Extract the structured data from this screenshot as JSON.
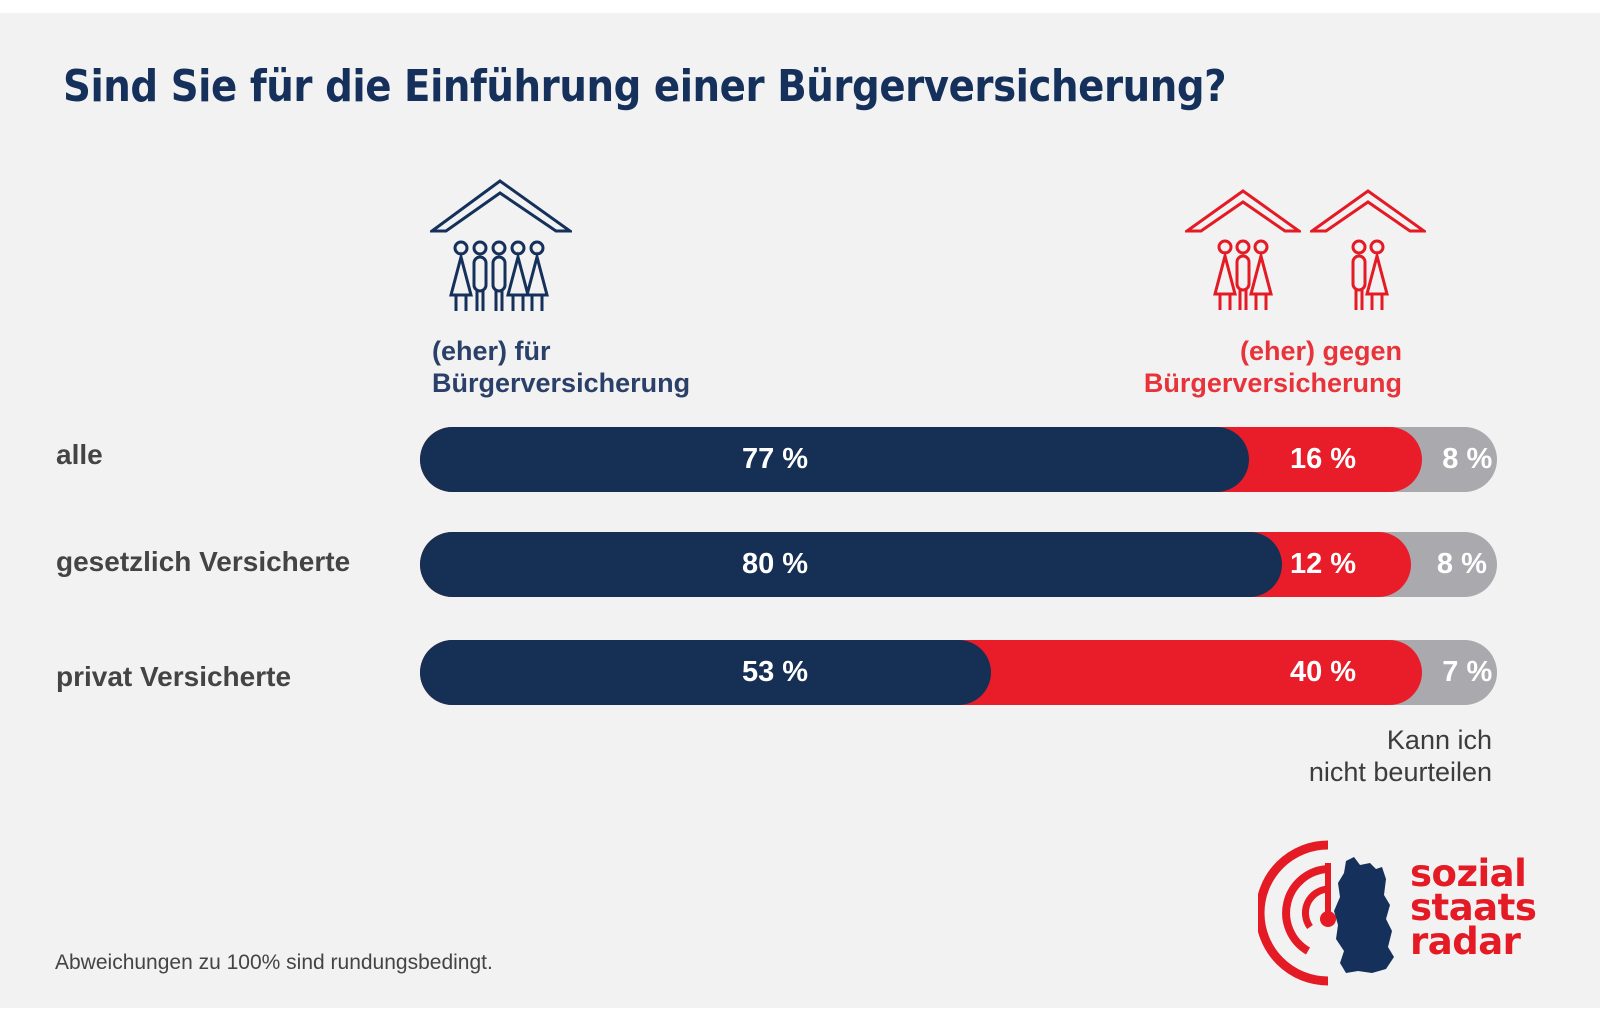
{
  "title": "Sind Sie für die Einführung einer Bürgerversicherung?",
  "legend": {
    "for_line1": "(eher) für",
    "for_line2": "Bürgerversicherung",
    "against_line1": "(eher) gegen",
    "against_line2": "Bürgerversicherung",
    "dont_know_line1": "Kann ich",
    "dont_know_line2": "nicht beurteilen",
    "for_icon": "house-family-five-people-icon",
    "against_icons": [
      "house-family-three-people-icon",
      "house-family-two-people-icon"
    ]
  },
  "colors": {
    "for": "#152f55",
    "against": "#e91d2a",
    "dont_know": "#aaaaae",
    "title": "#15305a",
    "background": "#f2f2f2"
  },
  "footnote": "Abweichungen zu 100% sind rundungsbedingt.",
  "logo": {
    "line1": "sozial",
    "line2": "staats",
    "line3": "radar",
    "icon": "radar-germany-map-icon"
  },
  "chart_data": {
    "type": "bar",
    "orientation": "horizontal",
    "stacked": true,
    "title": "Sind Sie für die Einführung einer Bürgerversicherung?",
    "categories": [
      "alle",
      "gesetzlich Versicherte",
      "privat Versicherte"
    ],
    "series": [
      {
        "name": "(eher) für Bürgerversicherung",
        "values": [
          77,
          80,
          53
        ],
        "labels": [
          "77 %",
          "80 %",
          "53 %"
        ]
      },
      {
        "name": "(eher) gegen Bürgerversicherung",
        "values": [
          16,
          12,
          40
        ],
        "labels": [
          "16 %",
          "12 %",
          "40 %"
        ]
      },
      {
        "name": "Kann ich nicht beurteilen",
        "values": [
          8,
          8,
          7
        ],
        "labels": [
          "8 %",
          "8 %",
          "7 %"
        ]
      }
    ],
    "unit": "%",
    "xlim": [
      0,
      100
    ],
    "grid": false,
    "legend_placement": "top"
  }
}
